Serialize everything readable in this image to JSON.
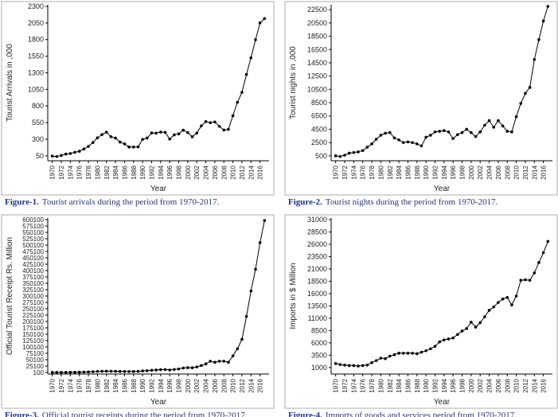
{
  "chart_data": [
    {
      "type": "line",
      "figure_label": "Figure-1.",
      "caption": "Tourist arrivals during the period from 1970-2017.",
      "x_label": "Year",
      "y_label": "Tourist Arrivals in ,000",
      "color": "#000000",
      "x": [
        1970,
        1971,
        1972,
        1973,
        1974,
        1975,
        1976,
        1977,
        1978,
        1979,
        1980,
        1981,
        1982,
        1983,
        1984,
        1985,
        1986,
        1987,
        1988,
        1989,
        1990,
        1991,
        1992,
        1993,
        1994,
        1995,
        1996,
        1997,
        1998,
        1999,
        2000,
        2001,
        2002,
        2003,
        2004,
        2005,
        2006,
        2007,
        2008,
        2009,
        2010,
        2011,
        2012,
        2013,
        2014,
        2015,
        2016,
        2017
      ],
      "values": [
        46,
        40,
        56,
        77,
        85,
        103,
        119,
        153,
        192,
        250,
        322,
        370,
        407,
        338,
        318,
        257,
        230,
        183,
        183,
        185,
        298,
        318,
        394,
        392,
        408,
        403,
        302,
        366,
        381,
        436,
        400,
        337,
        393,
        501,
        566,
        549,
        560,
        494,
        438,
        448,
        654,
        856,
        1006,
        1275,
        1527,
        1798,
        2051,
        2116
      ],
      "xlim": [
        1969,
        2018
      ],
      "xticks": [
        1970,
        1972,
        1974,
        1976,
        1978,
        1980,
        1982,
        1984,
        1986,
        1988,
        1990,
        1992,
        1994,
        1996,
        1998,
        2000,
        2002,
        2004,
        2006,
        2008,
        2010,
        2012,
        2014,
        2016
      ],
      "ylim": [
        0,
        2300
      ],
      "yticks": [
        50,
        300,
        550,
        800,
        1050,
        1300,
        1550,
        1800,
        2050,
        2300
      ]
    },
    {
      "type": "line",
      "figure_label": "Figure-2.",
      "caption": "Tourist nights during the period from 1970-2017.",
      "x_label": "Year",
      "y_label": "Tourist nights in ,000",
      "color": "#000000",
      "x": [
        1970,
        1971,
        1972,
        1973,
        1974,
        1975,
        1976,
        1977,
        1978,
        1979,
        1980,
        1981,
        1982,
        1983,
        1984,
        1985,
        1986,
        1987,
        1988,
        1989,
        1990,
        1991,
        1992,
        1993,
        1994,
        1995,
        1996,
        1997,
        1998,
        1999,
        2000,
        2001,
        2002,
        2003,
        2004,
        2005,
        2006,
        2007,
        2008,
        2009,
        2010,
        2011,
        2012,
        2013,
        2014,
        2015,
        2016,
        2017
      ],
      "values": [
        500,
        400,
        600,
        900,
        1000,
        1100,
        1300,
        1800,
        2300,
        3000,
        3600,
        3900,
        4000,
        3200,
        2900,
        2500,
        2600,
        2500,
        2300,
        2000,
        3300,
        3600,
        4100,
        4200,
        4300,
        4100,
        3100,
        3700,
        4000,
        4500,
        4000,
        3400,
        4100,
        5100,
        5800,
        4800,
        5800,
        5000,
        4200,
        4100,
        6400,
        8400,
        9900,
        10800,
        15000,
        18000,
        20800,
        23000
      ],
      "xlim": [
        1969,
        2018
      ],
      "xticks": [
        1970,
        1972,
        1974,
        1976,
        1978,
        1980,
        1982,
        1984,
        1986,
        1988,
        1990,
        1992,
        1994,
        1996,
        1998,
        2000,
        2002,
        2004,
        2006,
        2008,
        2010,
        2012,
        2014,
        2016
      ],
      "ylim": [
        0,
        23000
      ],
      "yticks": [
        500,
        2500,
        4500,
        6500,
        8500,
        10500,
        12500,
        14500,
        16500,
        18500,
        20500,
        22500
      ]
    },
    {
      "type": "line",
      "figure_label": "Figure-3.",
      "caption": "Official tourist receipts during the period from 1970-2017.",
      "x_label": "Year",
      "y_label": "Official Tourist Receipt Rs. Million",
      "color": "#000000",
      "x": [
        1970,
        1971,
        1972,
        1973,
        1974,
        1975,
        1976,
        1977,
        1978,
        1979,
        1980,
        1981,
        1982,
        1983,
        1984,
        1985,
        1986,
        1987,
        1988,
        1989,
        1990,
        1991,
        1992,
        1993,
        1994,
        1995,
        1996,
        1997,
        1998,
        1999,
        2000,
        2001,
        2002,
        2003,
        2004,
        2005,
        2006,
        2007,
        2008,
        2009,
        2010,
        2011,
        2012,
        2013,
        2014,
        2015,
        2016,
        2017
      ],
      "values": [
        150,
        180,
        250,
        400,
        500,
        700,
        900,
        1300,
        2000,
        2800,
        3900,
        4600,
        5100,
        4500,
        4500,
        4000,
        3700,
        3400,
        3600,
        4200,
        6000,
        6900,
        8400,
        9600,
        11100,
        11300,
        9600,
        11700,
        13600,
        17500,
        18900,
        18500,
        21500,
        27000,
        33300,
        44000,
        40000,
        44000,
        44000,
        40000,
        65000,
        93000,
        130000,
        220000,
        320000,
        405000,
        510000,
        597000
      ],
      "xlim": [
        1969,
        2018
      ],
      "xticks": [
        1970,
        1972,
        1974,
        1976,
        1978,
        1980,
        1982,
        1984,
        1986,
        1988,
        1990,
        1992,
        1994,
        1996,
        1998,
        2000,
        2002,
        2004,
        2006,
        2008,
        2010,
        2012,
        2014,
        2016
      ],
      "ylim": [
        0,
        600100
      ],
      "yticks": [
        100,
        25100,
        50100,
        75100,
        100100,
        125100,
        150100,
        175100,
        200100,
        225100,
        250100,
        275100,
        300100,
        325100,
        350100,
        375100,
        400100,
        425100,
        450100,
        475100,
        500100,
        525100,
        550100,
        575100,
        600100
      ]
    },
    {
      "type": "line",
      "figure_label": "Figure-4.",
      "caption": "Imports of goods and services period from 1970-2017.",
      "x_label": "Year",
      "y_label": "Imports in $ Million",
      "color": "#000000",
      "x": [
        1970,
        1971,
        1972,
        1973,
        1974,
        1975,
        1976,
        1977,
        1978,
        1979,
        1980,
        1981,
        1982,
        1983,
        1984,
        1985,
        1986,
        1987,
        1988,
        1989,
        1990,
        1991,
        1992,
        1993,
        1994,
        1995,
        1996,
        1997,
        1998,
        1999,
        2000,
        2001,
        2002,
        2003,
        2004,
        2005,
        2006,
        2007,
        2008,
        2009,
        2010,
        2011,
        2012,
        2013,
        2014,
        2015,
        2016,
        2017
      ],
      "values": [
        1800,
        1600,
        1500,
        1400,
        1400,
        1300,
        1400,
        1500,
        2000,
        2400,
        2900,
        2800,
        3300,
        3600,
        3900,
        3900,
        3900,
        3900,
        3800,
        4100,
        4400,
        4800,
        5300,
        6200,
        6600,
        6800,
        7000,
        7700,
        8400,
        8900,
        10200,
        9200,
        10100,
        11300,
        12600,
        13300,
        14200,
        14900,
        15200,
        13700,
        15500,
        18700,
        18800,
        18700,
        20200,
        22300,
        24300,
        26600
      ],
      "xlim": [
        1969,
        2018
      ],
      "xticks": [
        1970,
        1972,
        1974,
        1976,
        1978,
        1980,
        1982,
        1984,
        1986,
        1988,
        1990,
        1992,
        1994,
        1996,
        1998,
        2000,
        2002,
        2004,
        2006,
        2008,
        2010,
        2012,
        2014,
        2016
      ],
      "ylim": [
        0,
        31000
      ],
      "yticks": [
        1000,
        3500,
        6000,
        8500,
        11000,
        13500,
        16000,
        18500,
        21000,
        23500,
        26000,
        28500,
        31000
      ]
    }
  ]
}
